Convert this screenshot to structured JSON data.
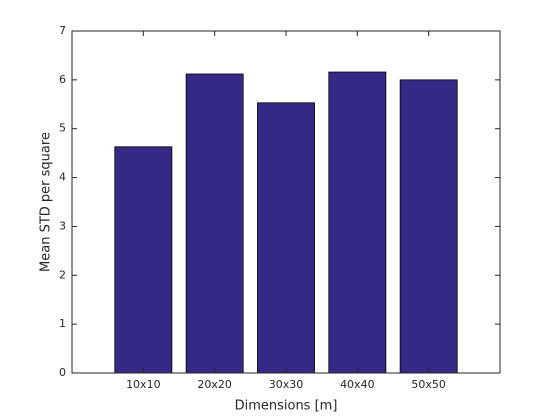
{
  "chart_data": {
    "type": "bar",
    "xlabel": "Dimensions [m]",
    "ylabel": "Mean STD per square",
    "categories": [
      "10x10",
      "20x20",
      "30x30",
      "40x40",
      "50x50"
    ],
    "values": [
      4.63,
      6.12,
      5.53,
      6.16,
      6.0
    ],
    "color": "#342a85",
    "ylim": [
      0,
      7
    ],
    "yticks": [
      0,
      1,
      2,
      3,
      4,
      5,
      6,
      7
    ],
    "grid": false
  }
}
